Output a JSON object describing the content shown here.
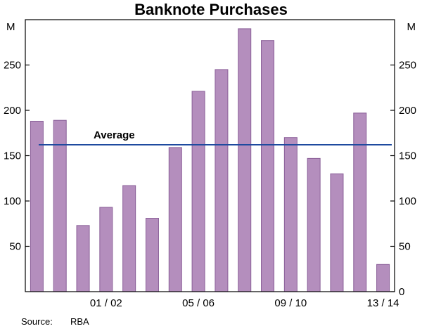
{
  "chart_data": {
    "type": "bar",
    "title": "Banknote Purchases",
    "unit": "M",
    "values": [
      188,
      189,
      73,
      93,
      117,
      81,
      159,
      221,
      245,
      290,
      277,
      170,
      147,
      130,
      197,
      30
    ],
    "x_tick_labels": [
      {
        "label": "01 / 02",
        "bar": 3
      },
      {
        "label": "05 / 06",
        "bar": 7
      },
      {
        "label": "09 / 10",
        "bar": 11
      },
      {
        "label": "13 / 14",
        "bar": 15
      }
    ],
    "y_ticks_left": [
      250,
      200,
      150,
      100,
      50
    ],
    "y_ticks_right": [
      250,
      200,
      150,
      100,
      50,
      0
    ],
    "ylim": [
      0,
      300
    ],
    "grid": false,
    "legend_position": "none",
    "average": {
      "label": "Average",
      "value": 162
    }
  },
  "source": {
    "label": "Source:",
    "value": "RBA"
  },
  "colors": {
    "bar_fill": "#b48ebd",
    "bar_stroke": "#8a5f98",
    "average_line": "#1e4a9f",
    "average_text": "#1e4a9f",
    "axis": "#000000"
  }
}
